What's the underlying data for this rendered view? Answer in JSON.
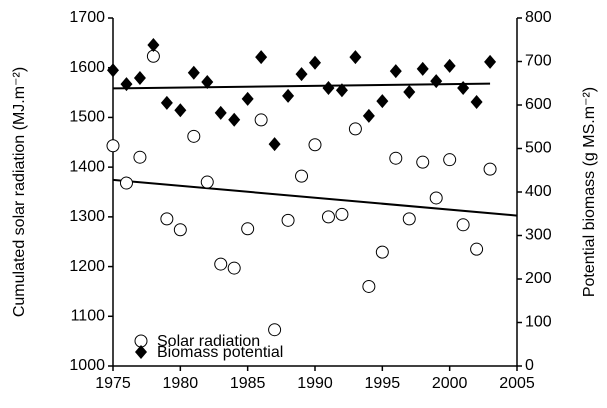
{
  "chart_data": {
    "type": "scatter",
    "y_label": "Cumulated solar radiation (MJ.m⁻²)",
    "y2_label": "Potential biomass (g MS.m⁻²)",
    "x": [
      1975,
      1976,
      1977,
      1978,
      1979,
      1980,
      1981,
      1982,
      1983,
      1984,
      1985,
      1986,
      1987,
      1988,
      1989,
      1990,
      1991,
      1992,
      1993,
      1994,
      1995,
      1996,
      1997,
      1998,
      1999,
      2000,
      2001,
      2002,
      2003
    ],
    "series": [
      {
        "name": "Solar radiation",
        "marker": "circle",
        "color": "#ffffff",
        "trendline": true,
        "values": [
          1443,
          1368,
          1420,
          1623,
          1296,
          1274,
          1462,
          1370,
          1205,
          1197,
          1276,
          1495,
          1073,
          1293,
          1382,
          1445,
          1300,
          1305,
          1477,
          1160,
          1229,
          1418,
          1296,
          1410,
          1338,
          1415,
          1284,
          1235,
          1396
        ]
      },
      {
        "name": "Biomass potential",
        "marker": "diamond",
        "color": "#000000",
        "axis": "y2",
        "trendline": true,
        "values": [
          680,
          648,
          662,
          738,
          605,
          588,
          674,
          653,
          582,
          566,
          614,
          710,
          510,
          621,
          671,
          697,
          639,
          634,
          710,
          575,
          609,
          678,
          630,
          683,
          655,
          690,
          639,
          607,
          699
        ]
      }
    ],
    "xlim": [
      1975,
      2005
    ],
    "xticks": [
      1975,
      1980,
      1985,
      1990,
      1995,
      2000,
      2005
    ],
    "ylim": [
      1000,
      1700
    ],
    "yticks": [
      1000,
      1100,
      1200,
      1300,
      1400,
      1500,
      1600,
      1700
    ],
    "y2lim": [
      0,
      800
    ],
    "y2ticks": [
      0,
      100,
      200,
      300,
      400,
      500,
      600,
      700,
      800
    ],
    "legend": "lower left",
    "grid": false
  }
}
